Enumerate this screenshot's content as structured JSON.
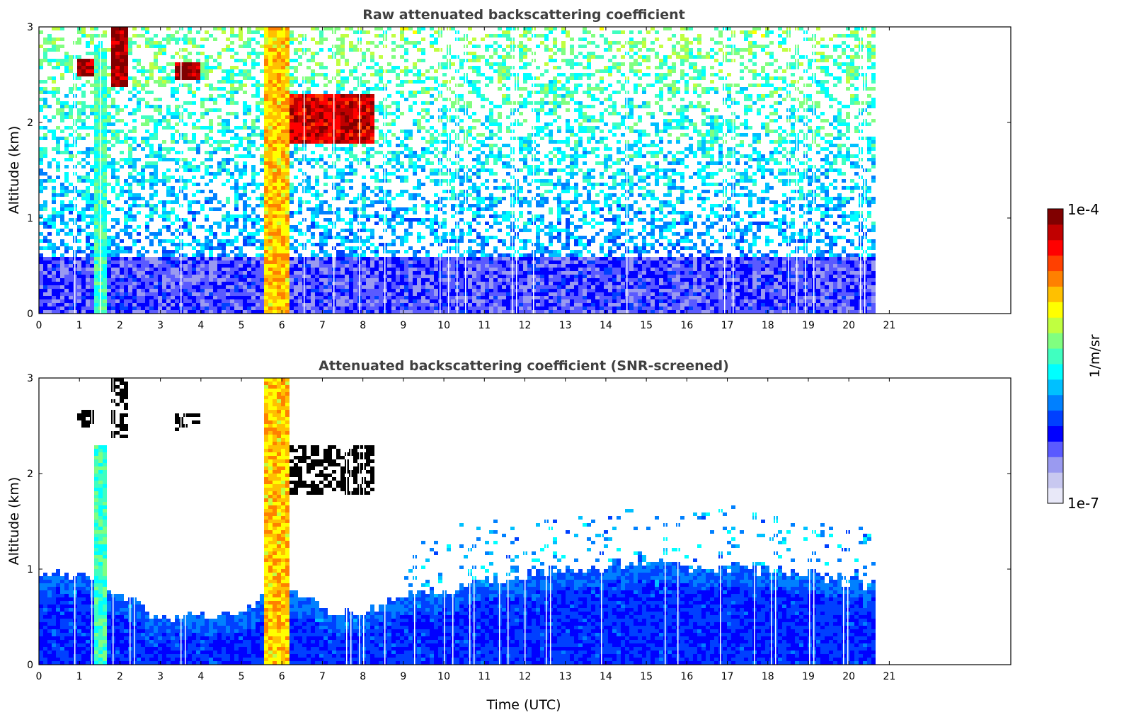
{
  "chart_data": [
    {
      "type": "heatmap",
      "title": "Raw attenuated backscattering coefficient",
      "xlabel": "",
      "ylabel": "Altitude (km)",
      "xlim": [
        0,
        24
      ],
      "ylim": [
        0,
        3
      ],
      "x_ticks": [
        0,
        1,
        2,
        3,
        4,
        5,
        6,
        7,
        8,
        9,
        10,
        11,
        12,
        13,
        14,
        15,
        16,
        17,
        18,
        19,
        20,
        21
      ],
      "y_ticks": [
        0,
        1,
        2,
        3
      ],
      "data_end_hour": 20.65,
      "features": [
        {
          "name": "boundary layer",
          "x": [
            0,
            20.65
          ],
          "y": [
            0,
            0.6
          ],
          "level": 0.2
        },
        {
          "name": "precipitation band",
          "x": [
            5.5,
            6.1
          ],
          "y": [
            0,
            3
          ],
          "level": 0.7
        },
        {
          "name": "fall streak",
          "x": [
            1.35,
            1.6
          ],
          "y": [
            0,
            2.8
          ],
          "level": 0.5
        },
        {
          "name": "cloud",
          "x": [
            0.9,
            1.35
          ],
          "y": [
            2.5,
            2.7
          ],
          "level": 0.95
        },
        {
          "name": "cloud",
          "x": [
            1.75,
            2.2
          ],
          "y": [
            2.4,
            3.0
          ],
          "level": 0.95
        },
        {
          "name": "cloud",
          "x": [
            3.35,
            3.95
          ],
          "y": [
            2.45,
            2.65
          ],
          "level": 0.95
        },
        {
          "name": "cloud",
          "x": [
            6.1,
            8.2
          ],
          "y": [
            1.8,
            2.3
          ],
          "level": 0.9
        }
      ]
    },
    {
      "type": "heatmap",
      "title": "Attenuated backscattering coefficient (SNR-screened)",
      "xlabel": "Time (UTC)",
      "ylabel": "Altitude (km)",
      "xlim": [
        0,
        24
      ],
      "ylim": [
        0,
        3
      ],
      "x_ticks": [
        0,
        1,
        2,
        3,
        4,
        5,
        6,
        7,
        8,
        9,
        10,
        11,
        12,
        13,
        14,
        15,
        16,
        17,
        18,
        19,
        20,
        21
      ],
      "y_ticks": [
        0,
        1,
        2,
        3
      ],
      "data_end_hour": 20.65,
      "boundary_layer_top_km": [
        [
          0,
          1.0
        ],
        [
          1,
          0.95
        ],
        [
          2,
          0.75
        ],
        [
          3,
          0.5
        ],
        [
          4,
          0.55
        ],
        [
          5,
          0.6
        ],
        [
          6,
          0.85
        ],
        [
          7,
          0.6
        ],
        [
          8,
          0.55
        ],
        [
          9,
          0.75
        ],
        [
          10,
          0.8
        ],
        [
          11,
          0.9
        ],
        [
          12,
          0.95
        ],
        [
          13,
          1.0
        ],
        [
          14,
          1.05
        ],
        [
          15,
          1.1
        ],
        [
          16,
          1.05
        ],
        [
          17,
          1.05
        ],
        [
          18,
          1.0
        ],
        [
          19,
          0.95
        ],
        [
          20,
          0.9
        ],
        [
          20.65,
          0.85
        ]
      ],
      "features": [
        {
          "name": "precipitation band",
          "x": [
            5.5,
            6.1
          ],
          "y": [
            0,
            3
          ],
          "level": 0.7
        },
        {
          "name": "fall streak",
          "x": [
            1.35,
            1.6
          ],
          "y": [
            0,
            2.3
          ],
          "level": 0.5
        },
        {
          "name": "cloud (black)",
          "x": [
            0.9,
            1.35
          ],
          "y": [
            2.5,
            2.7
          ],
          "level": 1.0
        },
        {
          "name": "cloud (black)",
          "x": [
            1.75,
            2.2
          ],
          "y": [
            2.4,
            3.0
          ],
          "level": 1.0
        },
        {
          "name": "cloud (black)",
          "x": [
            3.35,
            3.95
          ],
          "y": [
            2.45,
            2.65
          ],
          "level": 1.0
        },
        {
          "name": "cloud (black)",
          "x": [
            6.1,
            8.2
          ],
          "y": [
            1.8,
            2.3
          ],
          "level": 1.0
        }
      ]
    }
  ],
  "colorbar": {
    "label": "1/m/sr",
    "max_label": "1e-4",
    "min_label": "1e-7",
    "colormap": "jet",
    "colors": [
      "#e8e8f8",
      "#c8c8f0",
      "#9a9af0",
      "#5a5aff",
      "#0000ff",
      "#0040ff",
      "#0080ff",
      "#00c0ff",
      "#00ffff",
      "#40ffc0",
      "#80ff80",
      "#c0ff40",
      "#ffff00",
      "#ffc000",
      "#ff8000",
      "#ff4000",
      "#ff0000",
      "#c00000",
      "#800000"
    ]
  }
}
